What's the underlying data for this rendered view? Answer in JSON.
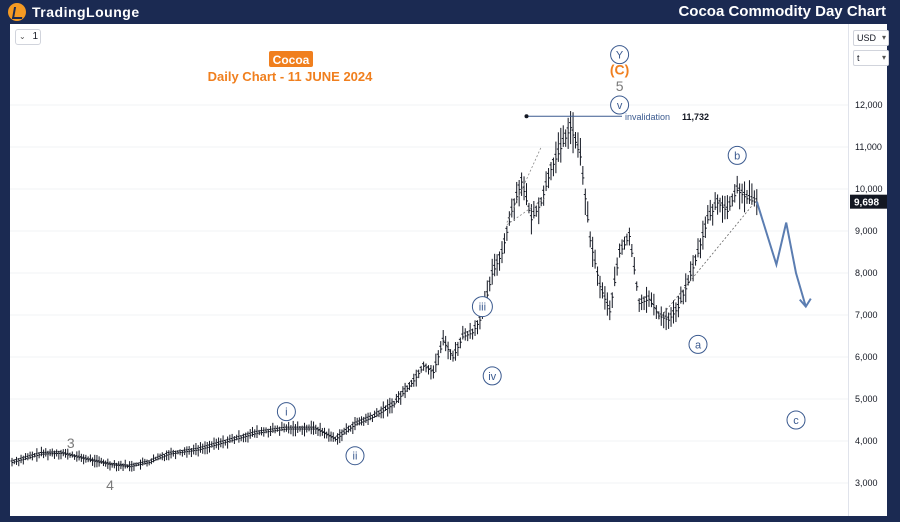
{
  "header": {
    "logo_trading": "TradingLounge",
    "title": "Cocoa Commodity Day Chart"
  },
  "toolbar": {
    "interval_label": "1",
    "currency": "USD",
    "scale_mode": "t"
  },
  "annotations": {
    "badge": "Cocoa",
    "subtitle": "Daily Chart - 11 JUNE 2024",
    "invalidation_label": "invalidation",
    "invalidation_value": "11,732",
    "last_price": "9,698"
  },
  "colors": {
    "navy": "#1b2a52",
    "orange": "#f07f1e",
    "wave_blue": "#3b5a8f",
    "grey_label": "#7a7a7a",
    "projection": "#5b7db1"
  },
  "chart_data": {
    "type": "line",
    "title": "Cocoa Commodity Day Chart",
    "subtitle": "Daily Chart - 11 JUNE 2024",
    "ylim": [
      2600,
      13000
    ],
    "y_ticks": [
      "12,000",
      "11,000",
      "10,000",
      "9,000",
      "8,000",
      "7,000",
      "6,000",
      "5,000",
      "4,000",
      "3,000"
    ],
    "y_tick_values": [
      12000,
      11000,
      10000,
      9000,
      8000,
      7000,
      6000,
      5000,
      4000,
      3000
    ],
    "xlim": [
      0,
      100
    ],
    "series": [
      {
        "values_x": [
          0,
          3,
          5,
          8,
          10,
          12,
          14,
          16,
          19,
          22,
          25,
          28,
          31,
          33,
          35,
          37,
          39,
          41,
          42,
          43,
          44,
          45,
          46,
          47,
          48,
          49,
          50,
          51,
          52,
          53,
          54,
          55,
          56,
          57,
          58,
          59,
          60,
          61,
          62,
          63,
          64,
          65,
          66,
          67,
          68,
          69,
          70,
          71,
          72,
          73,
          74,
          75,
          76
        ],
        "values_y": [
          3500,
          3700,
          3720,
          3550,
          3450,
          3400,
          3500,
          3700,
          3800,
          4000,
          4200,
          4300,
          4300,
          4050,
          4400,
          4600,
          4900,
          5450,
          5800,
          5650,
          6400,
          6000,
          6500,
          6600,
          7000,
          8000,
          8500,
          9500,
          10200,
          9300,
          9700,
          10500,
          11000,
          11500,
          10800,
          8800,
          7700,
          7100,
          8500,
          8900,
          7300,
          7400,
          7000,
          6900,
          7200,
          7800,
          8500,
          9300,
          9700,
          9500,
          10000,
          9800,
          9698
        ]
      }
    ],
    "projection": {
      "x": [
        76,
        78,
        79,
        80,
        81
      ],
      "y": [
        9700,
        8200,
        9200,
        8000,
        7200
      ]
    },
    "invalidation_level": 11732,
    "wave_labels": [
      {
        "label": "3",
        "x": 6,
        "y": 3950,
        "style": "grey"
      },
      {
        "label": "4",
        "x": 10,
        "y": 2950,
        "style": "grey"
      },
      {
        "label": "i",
        "x": 28,
        "y": 4700,
        "style": "circle"
      },
      {
        "label": "ii",
        "x": 35,
        "y": 3650,
        "style": "circle"
      },
      {
        "label": "iii",
        "x": 48,
        "y": 7200,
        "style": "circle"
      },
      {
        "label": "iv",
        "x": 49,
        "y": 5550,
        "style": "circle"
      },
      {
        "label": "v",
        "x": 62,
        "y": 12000,
        "style": "circle"
      },
      {
        "label": "5",
        "x": 62,
        "y": 12450,
        "style": "grey"
      },
      {
        "label": "(C)",
        "x": 62,
        "y": 12850,
        "style": "orange"
      },
      {
        "label": "Y",
        "x": 62,
        "y": 13200,
        "style": "circle"
      },
      {
        "label": "a",
        "x": 70,
        "y": 6300,
        "style": "circle"
      },
      {
        "label": "b",
        "x": 74,
        "y": 10800,
        "style": "circle"
      },
      {
        "label": "c",
        "x": 80,
        "y": 4500,
        "style": "circle"
      }
    ]
  }
}
